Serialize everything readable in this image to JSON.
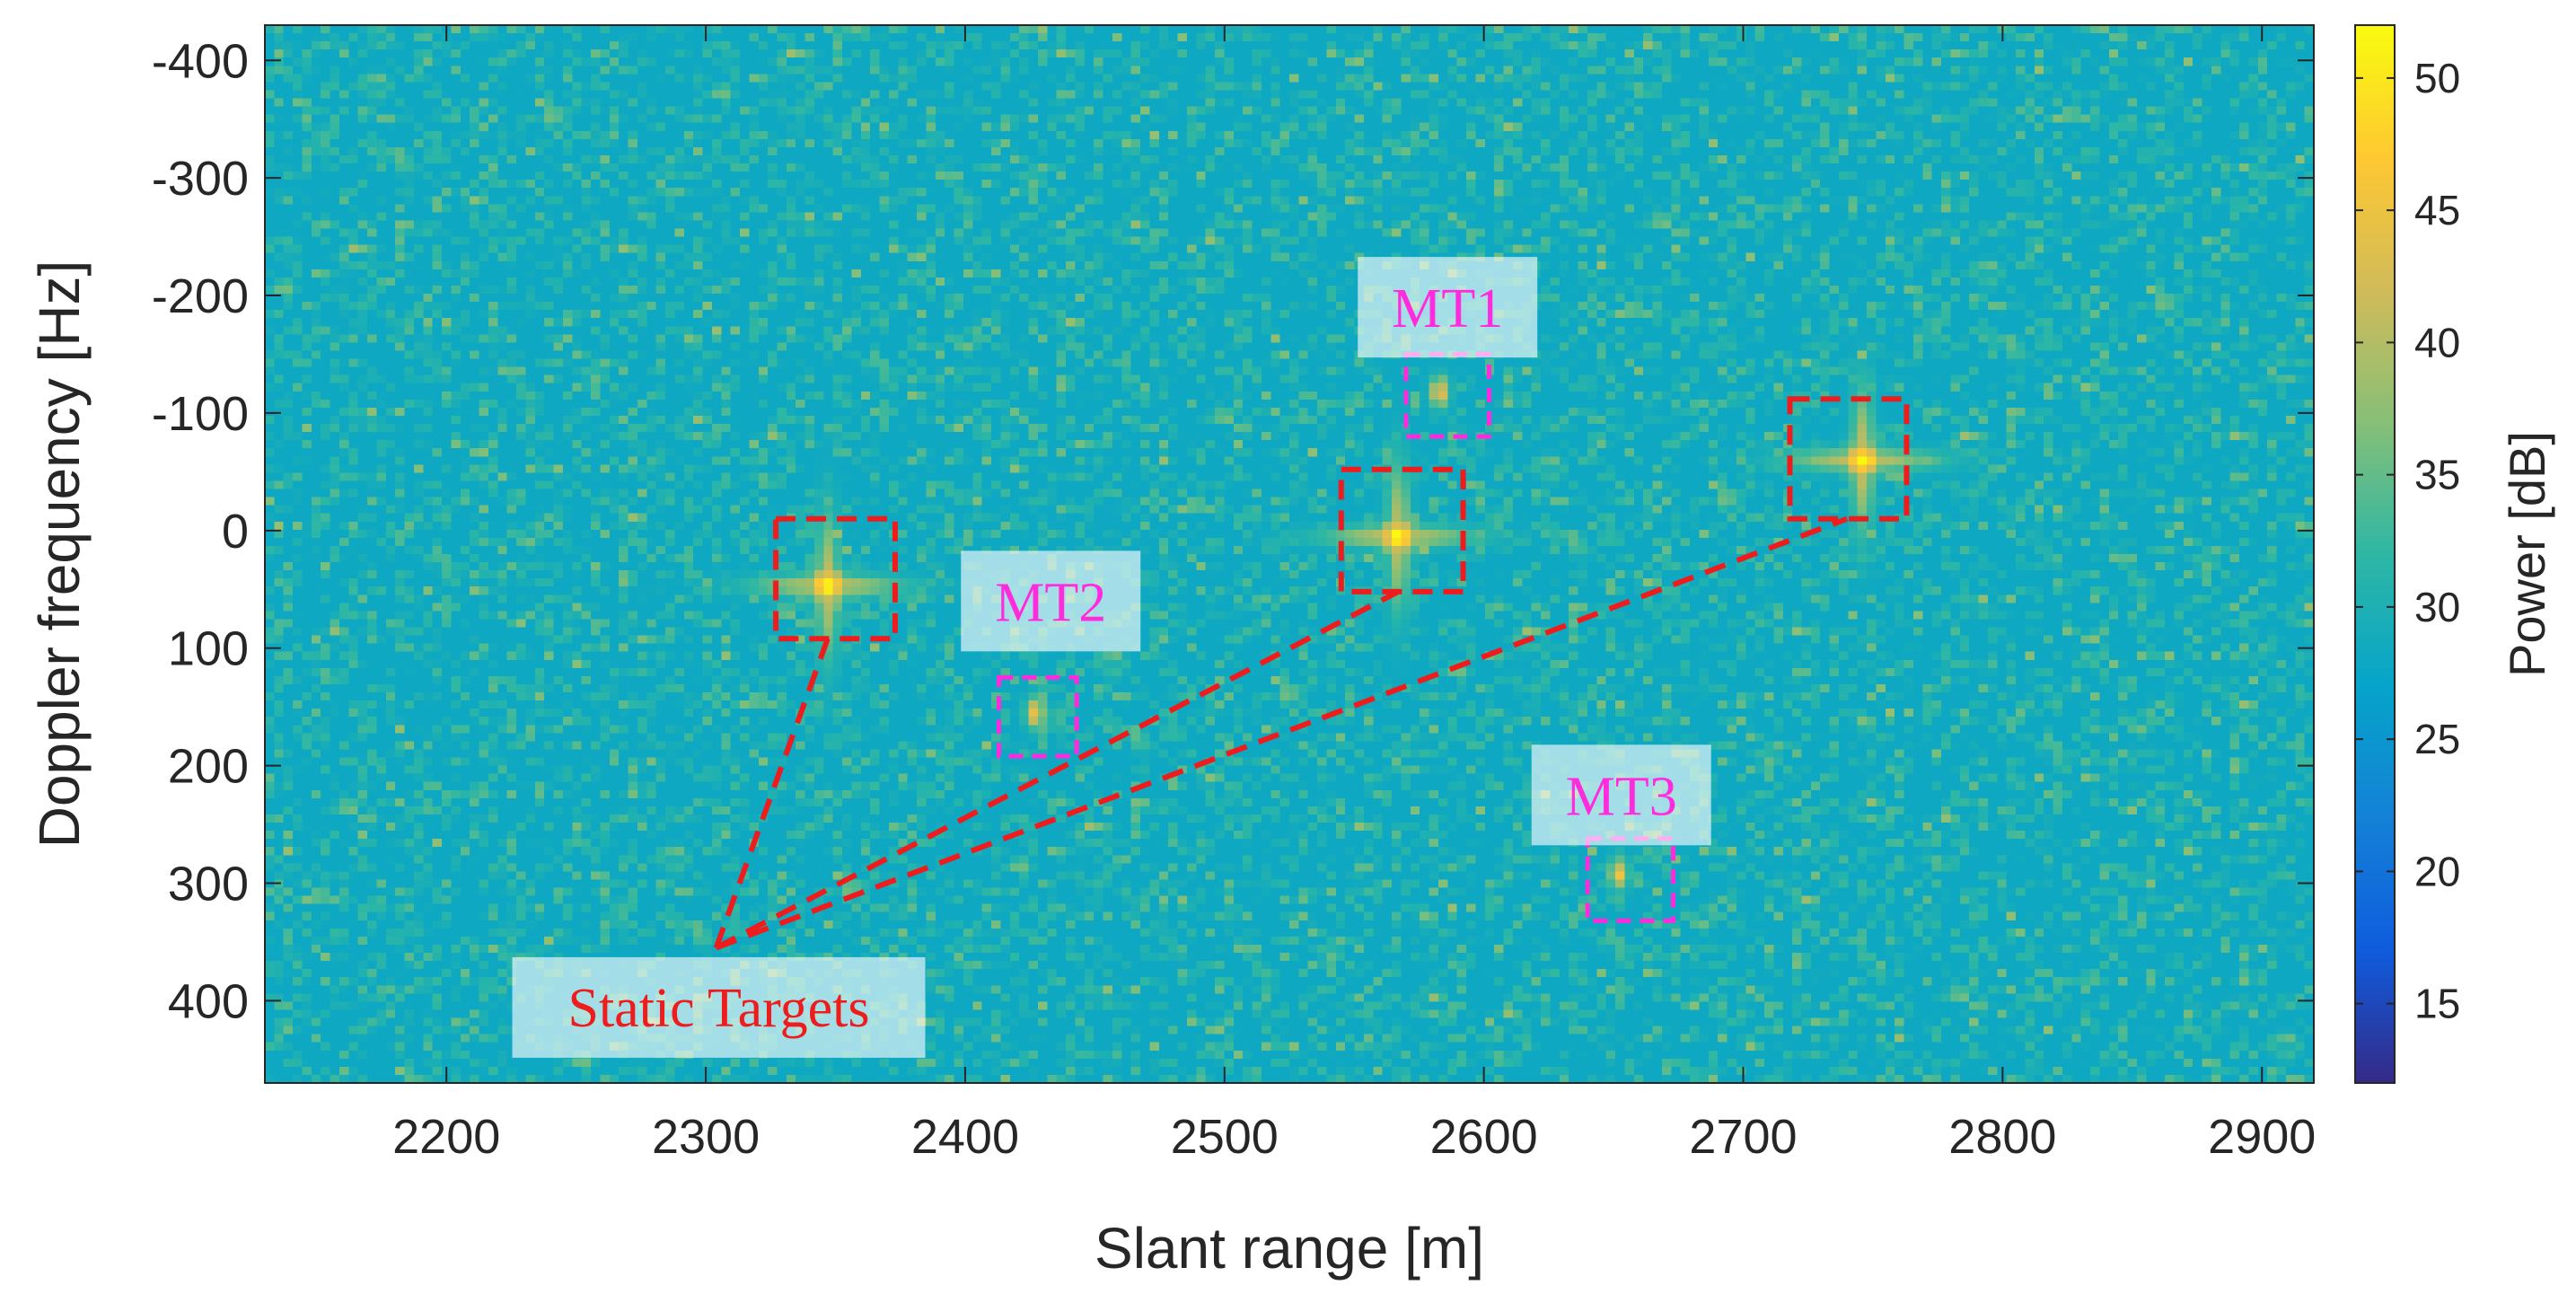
{
  "chart_data": {
    "type": "heatmap",
    "xlabel": "Slant range [m]",
    "ylabel": "Doppler frequency [Hz]",
    "colorbar_label": "Power [dB]",
    "xlim": [
      2130,
      2920
    ],
    "ylim": [
      -430,
      470
    ],
    "y_reversed": true,
    "x_ticks": [
      2200,
      2300,
      2400,
      2500,
      2600,
      2700,
      2800,
      2900
    ],
    "y_ticks": [
      -400,
      -300,
      -200,
      -100,
      0,
      100,
      200,
      300,
      400
    ],
    "clim": [
      12,
      52
    ],
    "colorbar_ticks": [
      15,
      20,
      25,
      30,
      35,
      40,
      45,
      50
    ],
    "colormap": "parula",
    "background_level_db": 28,
    "static_targets": [
      {
        "range": 2347,
        "doppler": 47,
        "peak_db": 52,
        "box": {
          "x": [
            2327,
            2373
          ],
          "y": [
            -10,
            92
          ]
        }
      },
      {
        "range": 2567,
        "doppler": 5,
        "peak_db": 52,
        "box": {
          "x": [
            2545,
            2592
          ],
          "y": [
            -52,
            52
          ]
        }
      },
      {
        "range": 2746,
        "doppler": -60,
        "peak_db": 52,
        "box": {
          "x": [
            2718,
            2763
          ],
          "y": [
            -112,
            -10
          ]
        }
      }
    ],
    "moving_targets": [
      {
        "name": "MT1",
        "range": 2583,
        "doppler": -118,
        "peak_db": 45,
        "box": {
          "x": [
            2570,
            2602
          ],
          "y": [
            -150,
            -80
          ]
        }
      },
      {
        "name": "MT2",
        "range": 2427,
        "doppler": 155,
        "peak_db": 45,
        "box": {
          "x": [
            2413,
            2443
          ],
          "y": [
            125,
            192
          ]
        }
      },
      {
        "name": "MT3",
        "range": 2652,
        "doppler": 292,
        "peak_db": 45,
        "box": {
          "x": [
            2640,
            2673
          ],
          "y": [
            262,
            332
          ]
        }
      }
    ],
    "annotations": {
      "static_label": "Static Targets",
      "static_label_pos": {
        "x": 2305,
        "y": 405
      },
      "static_label_anchor": {
        "x": 2304,
        "y": 355
      },
      "static_line_ends": [
        {
          "x": 2347,
          "y": 92
        },
        {
          "x": 2567,
          "y": 52
        },
        {
          "x": 2740,
          "y": -10
        }
      ],
      "mt_labels": [
        {
          "text": "MT1",
          "x": 2586,
          "y": -190
        },
        {
          "text": "MT2",
          "x": 2433,
          "y": 60
        },
        {
          "text": "MT3",
          "x": 2653,
          "y": 225
        }
      ]
    },
    "colors": {
      "static": "#ee1c1c",
      "moving": "#ff2bdc",
      "axis": "#262626"
    }
  }
}
